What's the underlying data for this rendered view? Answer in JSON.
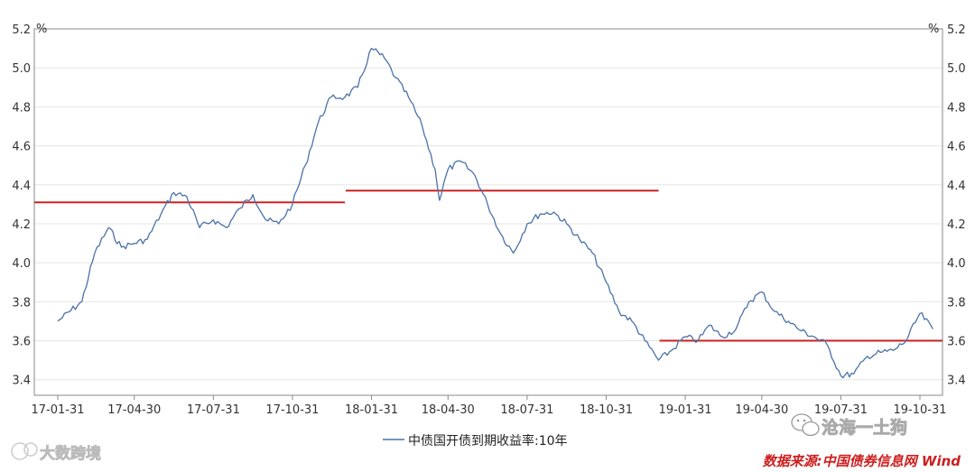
{
  "chart_data": {
    "type": "line",
    "unit_left": "%",
    "unit_right": "%",
    "y_ticks": [
      "3.4",
      "3.6",
      "3.8",
      "4.0",
      "4.2",
      "4.4",
      "4.6",
      "4.8",
      "5.0",
      "5.2"
    ],
    "ylim": [
      3.32,
      5.2
    ],
    "x_ticks": [
      "17-01-31",
      "17-04-30",
      "17-07-31",
      "17-10-31",
      "18-01-31",
      "18-04-30",
      "18-07-31",
      "18-10-31",
      "19-01-31",
      "19-04-30",
      "19-07-31",
      "19-10-31"
    ],
    "grid": true,
    "legend_position": "bottom",
    "series": [
      {
        "name": "中债国开债到期收益率:10年",
        "color": "#4a72a8",
        "points": [
          [
            "17-01-31",
            3.7
          ],
          [
            "17-02-28",
            3.8
          ],
          [
            "17-03-15",
            4.05
          ],
          [
            "17-03-31",
            4.18
          ],
          [
            "17-04-15",
            4.08
          ],
          [
            "17-04-30",
            4.1
          ],
          [
            "17-05-15",
            4.12
          ],
          [
            "17-05-31",
            4.25
          ],
          [
            "17-06-15",
            4.36
          ],
          [
            "17-06-30",
            4.34
          ],
          [
            "17-07-15",
            4.18
          ],
          [
            "17-07-31",
            4.22
          ],
          [
            "17-08-15",
            4.18
          ],
          [
            "17-08-31",
            4.28
          ],
          [
            "17-09-15",
            4.35
          ],
          [
            "17-09-30",
            4.22
          ],
          [
            "17-10-15",
            4.2
          ],
          [
            "17-10-31",
            4.3
          ],
          [
            "17-11-15",
            4.5
          ],
          [
            "17-11-30",
            4.72
          ],
          [
            "17-12-15",
            4.85
          ],
          [
            "17-12-31",
            4.85
          ],
          [
            "18-01-15",
            4.9
          ],
          [
            "18-01-31",
            5.1
          ],
          [
            "18-02-15",
            5.05
          ],
          [
            "18-02-28",
            4.95
          ],
          [
            "18-03-15",
            4.85
          ],
          [
            "18-03-31",
            4.7
          ],
          [
            "18-04-15",
            4.48
          ],
          [
            "18-04-20",
            4.32
          ],
          [
            "18-04-30",
            4.48
          ],
          [
            "18-05-15",
            4.52
          ],
          [
            "18-05-31",
            4.45
          ],
          [
            "18-06-15",
            4.3
          ],
          [
            "18-06-30",
            4.15
          ],
          [
            "18-07-15",
            4.05
          ],
          [
            "18-07-31",
            4.2
          ],
          [
            "18-08-15",
            4.25
          ],
          [
            "18-08-31",
            4.26
          ],
          [
            "18-09-15",
            4.2
          ],
          [
            "18-09-30",
            4.12
          ],
          [
            "18-10-15",
            4.05
          ],
          [
            "18-10-31",
            3.9
          ],
          [
            "18-11-15",
            3.75
          ],
          [
            "18-11-30",
            3.7
          ],
          [
            "18-12-15",
            3.6
          ],
          [
            "18-12-31",
            3.5
          ],
          [
            "19-01-15",
            3.55
          ],
          [
            "19-01-31",
            3.62
          ],
          [
            "19-02-15",
            3.6
          ],
          [
            "19-02-28",
            3.68
          ],
          [
            "19-03-15",
            3.62
          ],
          [
            "19-03-31",
            3.66
          ],
          [
            "19-04-15",
            3.8
          ],
          [
            "19-04-30",
            3.85
          ],
          [
            "19-05-15",
            3.75
          ],
          [
            "19-05-31",
            3.7
          ],
          [
            "19-06-15",
            3.65
          ],
          [
            "19-06-30",
            3.62
          ],
          [
            "19-07-15",
            3.58
          ],
          [
            "19-07-31",
            3.42
          ],
          [
            "19-08-15",
            3.43
          ],
          [
            "19-08-31",
            3.52
          ],
          [
            "19-09-15",
            3.54
          ],
          [
            "19-09-30",
            3.55
          ],
          [
            "19-10-15",
            3.6
          ],
          [
            "19-10-31",
            3.74
          ],
          [
            "19-11-15",
            3.66
          ]
        ]
      }
    ],
    "reference_segments": [
      {
        "x_start": "17-01-01",
        "x_end": "17-12-31",
        "y": 4.31,
        "color": "#cc2222"
      },
      {
        "x_start": "18-01-01",
        "x_end": "18-12-31",
        "y": 4.37,
        "color": "#cc2222"
      },
      {
        "x_start": "19-01-01",
        "x_end": "19-11-30",
        "y": 3.6,
        "color": "#cc2222"
      }
    ]
  },
  "watermark_left": "大数跨境",
  "watermark_right": "沧海一土狗",
  "source_text": "数据来源:中国债券信息网 Wind"
}
